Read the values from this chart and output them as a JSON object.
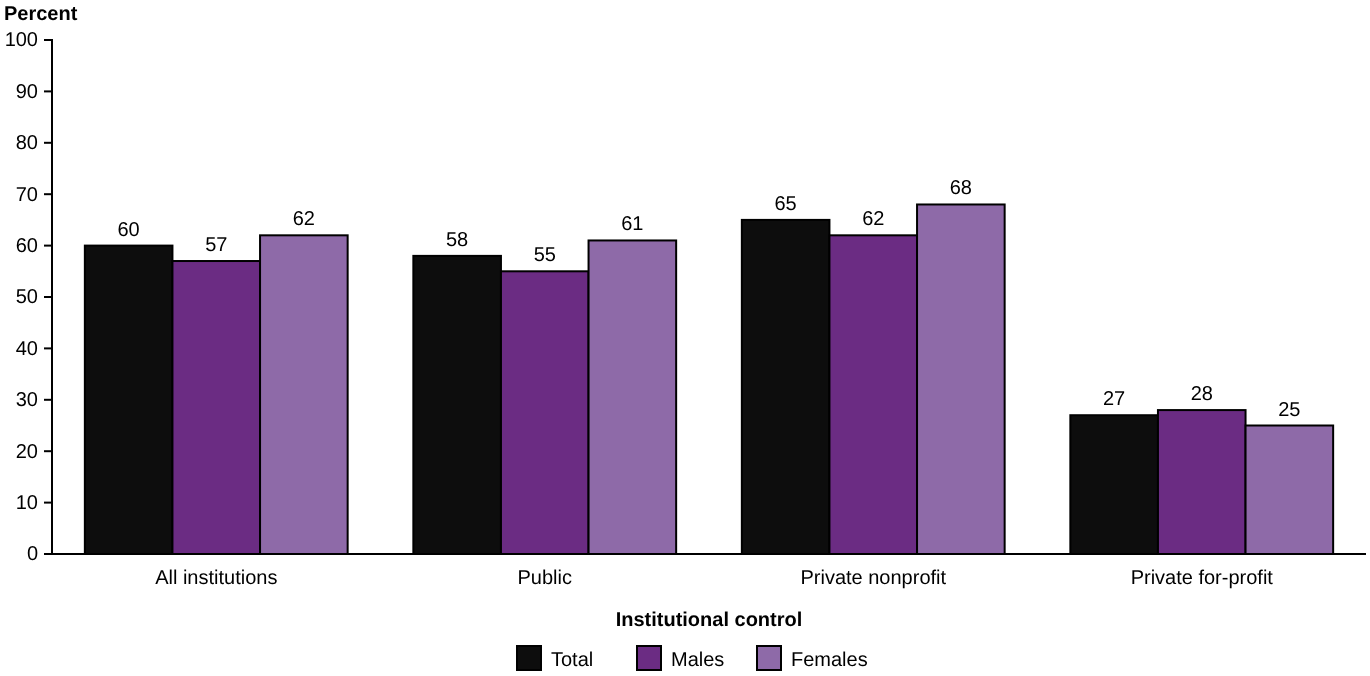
{
  "chart_data": {
    "type": "bar",
    "ylabel": "Percent",
    "xlabel": "Institutional control",
    "categories": [
      "All institutions",
      "Public",
      "Private nonprofit",
      "Private for-profit"
    ],
    "series": [
      {
        "name": "Total",
        "color": "#0d0d0d",
        "values": [
          60,
          58,
          65,
          27
        ]
      },
      {
        "name": "Males",
        "color": "#6b2c83",
        "values": [
          57,
          55,
          62,
          28
        ]
      },
      {
        "name": "Females",
        "color": "#8e6aa8",
        "values": [
          62,
          61,
          68,
          25
        ]
      }
    ],
    "ylim": [
      0,
      100
    ],
    "yticks": [
      0,
      10,
      20,
      30,
      40,
      50,
      60,
      70,
      80,
      90,
      100
    ],
    "data_labels": true,
    "legend": "bottom",
    "grid": false
  }
}
